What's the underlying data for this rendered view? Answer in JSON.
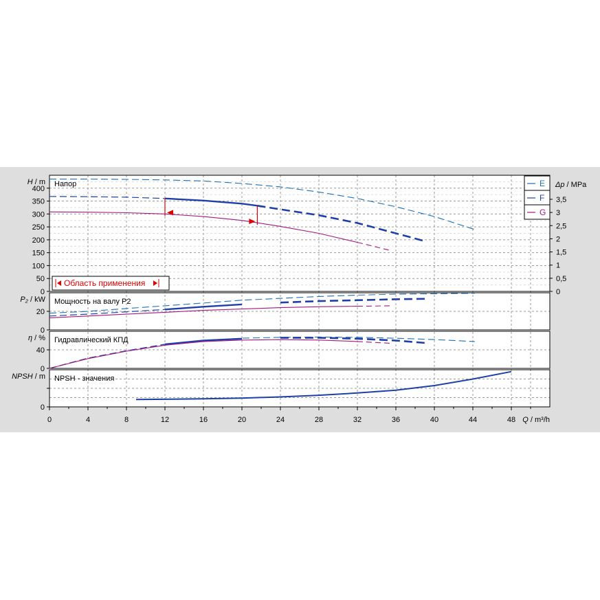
{
  "chart_data": {
    "type": "line",
    "x_axis": {
      "label_var": "Q",
      "label_unit": "m³/h",
      "range": [
        0,
        52
      ],
      "ticks": [
        0,
        4,
        8,
        12,
        16,
        20,
        24,
        28,
        32,
        36,
        40,
        44,
        48
      ]
    },
    "legend": {
      "placement": "top-right",
      "entries": [
        {
          "name": "E",
          "color": "#1a6fb5"
        },
        {
          "name": "F",
          "color": "#1f3fa8"
        },
        {
          "name": "G",
          "color": "#a3187f"
        }
      ]
    },
    "operating_range": {
      "label": "Область применения",
      "q_min": 12,
      "q_max": 21.6
    },
    "panels": [
      {
        "key": "head",
        "title": "Напор",
        "y_var": "H",
        "y_unit": "m",
        "ylim": [
          0,
          450
        ],
        "yticks": [
          "0",
          "50",
          "100",
          "150",
          "200",
          "250",
          "300",
          "350",
          "400"
        ],
        "right_axis": {
          "var": "Δp",
          "unit": "MPa",
          "ticks": [
            "0",
            "0,5",
            "1",
            "1,5",
            "2",
            "2,5",
            "3",
            "3,5"
          ]
        },
        "series": [
          {
            "name": "E",
            "color": "#1a6fb5",
            "x": [
              0,
              4,
              8,
              12,
              16,
              20,
              24,
              28,
              32,
              36,
              40,
              44.2
            ],
            "y": [
              435,
              435,
              434,
              432,
              428,
              418,
              405,
              385,
              360,
              328,
              290,
              240
            ]
          },
          {
            "name": "F",
            "color": "#1f3fa8",
            "x": [
              0,
              4,
              8,
              12,
              16,
              20,
              21.6,
              24,
              28,
              32,
              36,
              39
            ],
            "y": [
              368,
              367,
              365,
              360,
              352,
              340,
              332,
              318,
              295,
              265,
              225,
              195
            ]
          },
          {
            "name": "G",
            "color": "#a3187f",
            "x": [
              0,
              4,
              8,
              12,
              16,
              20,
              24,
              28,
              32,
              35.6
            ],
            "y": [
              308,
              307,
              305,
              300,
              290,
              275,
              252,
              225,
              190,
              157
            ]
          }
        ]
      },
      {
        "key": "power",
        "title": "Мощность на валу P2",
        "y_var": "P₂",
        "y_unit": "kW",
        "ylim": [
          0,
          40
        ],
        "yticks": [
          "0",
          "20"
        ],
        "series": [
          {
            "name": "E",
            "color": "#1a6fb5",
            "x": [
              0,
              4,
              8,
              12,
              16,
              20,
              24,
              28,
              32,
              36,
              40,
              44.2
            ],
            "y": [
              18,
              20,
              23,
              26,
              29,
              32,
              34,
              36,
              37.5,
              38.5,
              39,
              39.5
            ]
          },
          {
            "name": "F",
            "color": "#1f3fa8",
            "x": [
              0,
              4,
              8,
              12,
              16,
              20,
              24,
              28,
              32,
              36,
              39
            ],
            "y": [
              15,
              17,
              19.5,
              22,
              25,
              27.5,
              29.5,
              31,
              32,
              33,
              33.5
            ]
          },
          {
            "name": "G",
            "color": "#a3187f",
            "x": [
              0,
              4,
              8,
              12,
              16,
              20,
              24,
              28,
              32,
              35.6
            ],
            "y": [
              13,
              15,
              17,
              19,
              21,
              22.5,
              24,
              25,
              25.5,
              26
            ]
          }
        ]
      },
      {
        "key": "efficiency",
        "title": "Гидравлический КПД",
        "y_var": "η",
        "y_unit": "%",
        "ylim": [
          0,
          80
        ],
        "yticks": [
          "0",
          "40"
        ],
        "series": [
          {
            "name": "E",
            "color": "#1a6fb5",
            "x": [
              0,
              4,
              8,
              12,
              16,
              20,
              24,
              28,
              32,
              36,
              40,
              44.2
            ],
            "y": [
              0,
              22,
              38,
              52,
              60,
              65,
              67,
              67.5,
              67,
              65,
              62,
              58
            ]
          },
          {
            "name": "F",
            "color": "#1f3fa8",
            "x": [
              0,
              4,
              8,
              12,
              16,
              20,
              24,
              28,
              32,
              36,
              39
            ],
            "y": [
              0,
              22,
              38,
              52,
              60,
              64,
              66,
              66,
              64,
              60,
              55
            ]
          },
          {
            "name": "G",
            "color": "#a3187f",
            "x": [
              0,
              4,
              8,
              12,
              16,
              20,
              24,
              28,
              32,
              35.6
            ],
            "y": [
              0,
              21,
              37,
              50,
              58,
              61,
              62,
              61,
              58,
              54
            ]
          }
        ]
      },
      {
        "key": "npsh",
        "title": "NPSH - значения",
        "y_var": "NPSH",
        "y_unit": "m",
        "ylim": [
          0,
          8
        ],
        "yticks": [
          "0"
        ],
        "series": [
          {
            "name": "F",
            "color": "#1f3fa8",
            "x": [
              9,
              12,
              16,
              20,
              24,
              28,
              32,
              36,
              40,
              44,
              48
            ],
            "y": [
              1.6,
              1.65,
              1.75,
              1.9,
              2.15,
              2.5,
              3,
              3.6,
              4.6,
              6,
              7.6
            ]
          }
        ]
      }
    ]
  }
}
